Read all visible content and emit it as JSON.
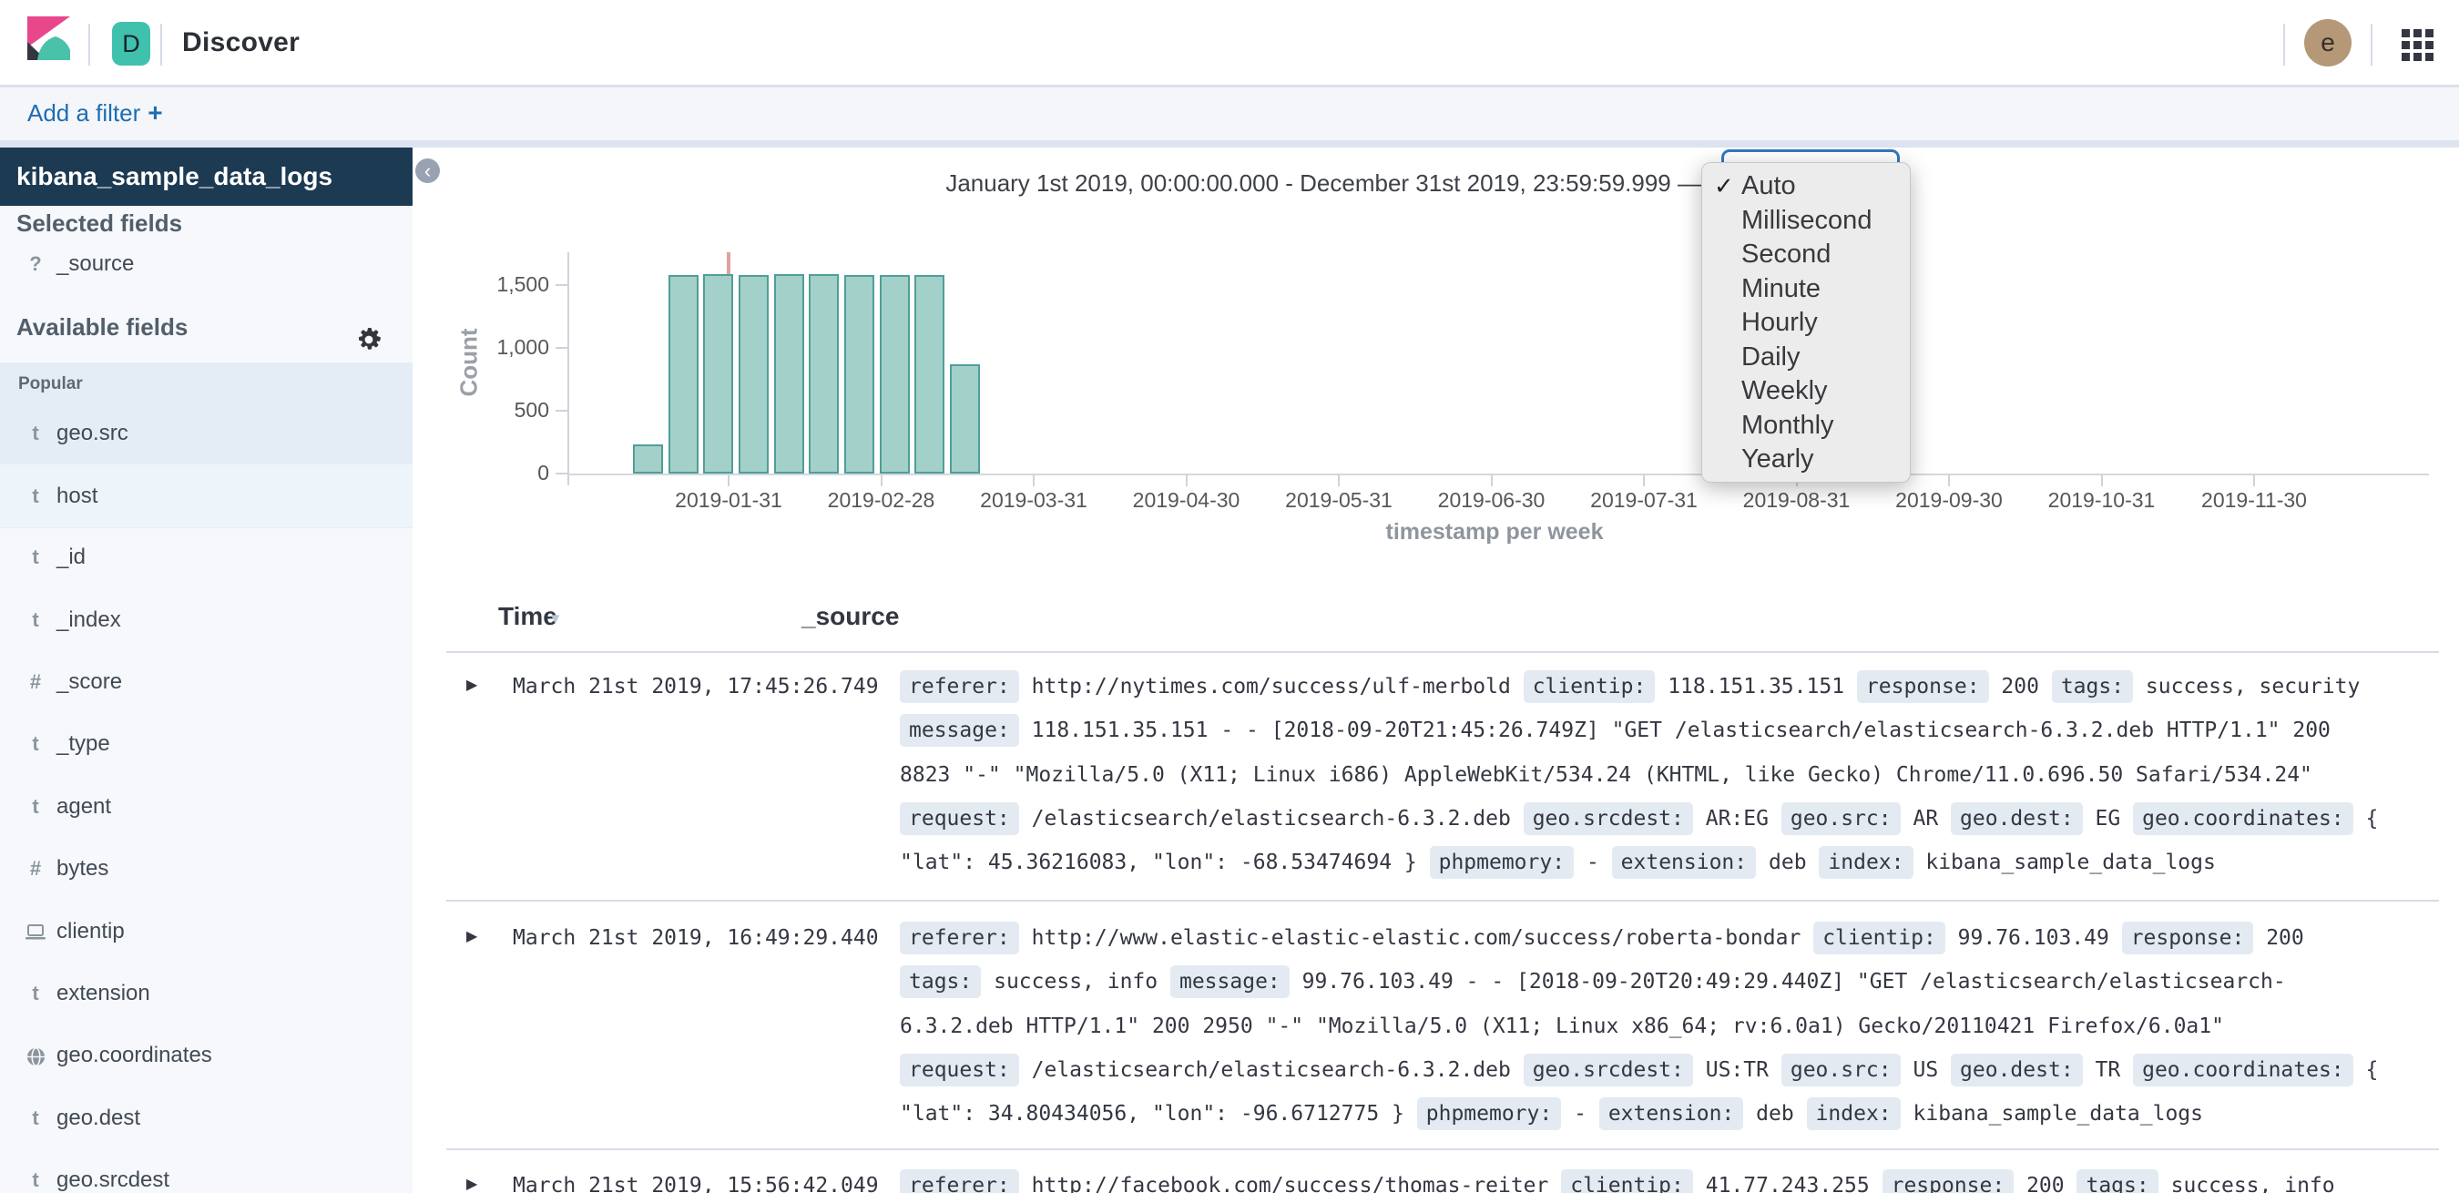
{
  "topbar": {
    "page_title": "Discover",
    "space_initial": "D",
    "user_initial": "e"
  },
  "filter_bar": {
    "add_filter": "Add a filter",
    "plus": "+"
  },
  "sidebar": {
    "index_pattern": "kibana_sample_data_logs",
    "collapse_icon": "‹",
    "selected_heading": "Selected fields",
    "selected_fields": [
      {
        "icon": "?",
        "name": "_source"
      }
    ],
    "available_heading": "Available fields",
    "popular_heading": "Popular",
    "popular_fields": [
      {
        "icon": "t",
        "name": "geo.src",
        "highlight": false
      },
      {
        "icon": "t",
        "name": "host",
        "highlight": true
      }
    ],
    "fields": [
      {
        "icon": "t",
        "name": "_id"
      },
      {
        "icon": "t",
        "name": "_index"
      },
      {
        "icon": "#",
        "name": "_score"
      },
      {
        "icon": "t",
        "name": "_type"
      },
      {
        "icon": "t",
        "name": "agent"
      },
      {
        "icon": "#",
        "name": "bytes"
      },
      {
        "icon": "laptop",
        "name": "clientip"
      },
      {
        "icon": "t",
        "name": "extension"
      },
      {
        "icon": "globe",
        "name": "geo.coordinates"
      },
      {
        "icon": "t",
        "name": "geo.dest"
      },
      {
        "icon": "t",
        "name": "geo.srcdest"
      }
    ]
  },
  "chart_data": {
    "type": "bar",
    "title": "January 1st 2019, 00:00:00.000 - December 31st 2019, 23:59:59.999 —",
    "ylabel": "Count",
    "xlabel": "timestamp per week",
    "ylim": [
      0,
      1750
    ],
    "y_ticks": [
      0,
      500,
      1000,
      1500
    ],
    "y_tick_labels": [
      "0",
      "500",
      "1,000",
      "1,500"
    ],
    "x_tick_labels": [
      "2019-01-31",
      "2019-02-28",
      "2019-03-31",
      "2019-04-30",
      "2019-05-31",
      "2019-06-30",
      "2019-07-31",
      "2019-08-31",
      "2019-09-30",
      "2019-10-31",
      "2019-11-30"
    ],
    "values": [
      235,
      1580,
      1585,
      1580,
      1585,
      1585,
      1580,
      1580,
      1580,
      870
    ],
    "grid": false,
    "legend": "none",
    "bar_color": "#a4d0ca",
    "bar_border_color": "#4f9f98",
    "time_marker_color": "#c3554c"
  },
  "interval_menu": {
    "selected": "Auto",
    "check": "✓",
    "options": [
      "Auto",
      "Millisecond",
      "Second",
      "Minute",
      "Hourly",
      "Daily",
      "Weekly",
      "Monthly",
      "Yearly"
    ]
  },
  "table": {
    "time_header": "Time",
    "sort_arrow": "▾",
    "source_header": "_source",
    "expand_caret": "▶",
    "rows": [
      {
        "time": "March 21st 2019, 17:45:26.749",
        "lines": [
          [
            {
              "c": "referer:"
            },
            {
              "t": "http://nytimes.com/success/ulf-merbold"
            },
            {
              "c": "clientip:"
            },
            {
              "t": "118.151.35.151"
            },
            {
              "c": "response:"
            },
            {
              "t": "200"
            },
            {
              "c": "tags:"
            },
            {
              "t": "success, security"
            }
          ],
          [
            {
              "c": "message:"
            },
            {
              "t": "118.151.35.151 - - [2018-09-20T21:45:26.749Z] \"GET /elasticsearch/elasticsearch-6.3.2.deb HTTP/1.1\" 200"
            }
          ],
          [
            {
              "t": "8823 \"-\" \"Mozilla/5.0 (X11; Linux i686) AppleWebKit/534.24 (KHTML, like Gecko) Chrome/11.0.696.50 Safari/534.24\""
            }
          ],
          [
            {
              "c": "request:"
            },
            {
              "t": "/elasticsearch/elasticsearch-6.3.2.deb"
            },
            {
              "c": "geo.srcdest:"
            },
            {
              "t": "AR:EG"
            },
            {
              "c": "geo.src:"
            },
            {
              "t": "AR"
            },
            {
              "c": "geo.dest:"
            },
            {
              "t": "EG"
            },
            {
              "c": "geo.coordinates:"
            },
            {
              "t": "{"
            }
          ],
          [
            {
              "t": "\"lat\": 45.36216083, \"lon\": -68.53474694 }"
            },
            {
              "c": "phpmemory:"
            },
            {
              "t": "-"
            },
            {
              "c": "extension:"
            },
            {
              "t": "deb"
            },
            {
              "c": "index:"
            },
            {
              "t": "kibana_sample_data_logs"
            }
          ]
        ]
      },
      {
        "time": "March 21st 2019, 16:49:29.440",
        "lines": [
          [
            {
              "c": "referer:"
            },
            {
              "t": "http://www.elastic-elastic-elastic.com/success/roberta-bondar"
            },
            {
              "c": "clientip:"
            },
            {
              "t": "99.76.103.49"
            },
            {
              "c": "response:"
            },
            {
              "t": "200"
            }
          ],
          [
            {
              "c": "tags:"
            },
            {
              "t": "success, info"
            },
            {
              "c": "message:"
            },
            {
              "t": "99.76.103.49 - - [2018-09-20T20:49:29.440Z] \"GET /elasticsearch/elasticsearch-"
            }
          ],
          [
            {
              "t": "6.3.2.deb HTTP/1.1\" 200 2950 \"-\" \"Mozilla/5.0 (X11; Linux x86_64; rv:6.0a1) Gecko/20110421 Firefox/6.0a1\""
            }
          ],
          [
            {
              "c": "request:"
            },
            {
              "t": "/elasticsearch/elasticsearch-6.3.2.deb"
            },
            {
              "c": "geo.srcdest:"
            },
            {
              "t": "US:TR"
            },
            {
              "c": "geo.src:"
            },
            {
              "t": "US"
            },
            {
              "c": "geo.dest:"
            },
            {
              "t": "TR"
            },
            {
              "c": "geo.coordinates:"
            },
            {
              "t": "{"
            }
          ],
          [
            {
              "t": "\"lat\": 34.80434056, \"lon\": -96.6712775 }"
            },
            {
              "c": "phpmemory:"
            },
            {
              "t": "-"
            },
            {
              "c": "extension:"
            },
            {
              "t": "deb"
            },
            {
              "c": "index:"
            },
            {
              "t": "kibana_sample_data_logs"
            }
          ]
        ]
      },
      {
        "time": "March 21st 2019, 15:56:42.049",
        "lines": [
          [
            {
              "c": "referer:"
            },
            {
              "t": "http://facebook.com/success/thomas-reiter"
            },
            {
              "c": "clientip:"
            },
            {
              "t": "41.77.243.255"
            },
            {
              "c": "response:"
            },
            {
              "t": "200"
            },
            {
              "c": "tags:"
            },
            {
              "t": "success, info"
            }
          ]
        ]
      }
    ]
  }
}
